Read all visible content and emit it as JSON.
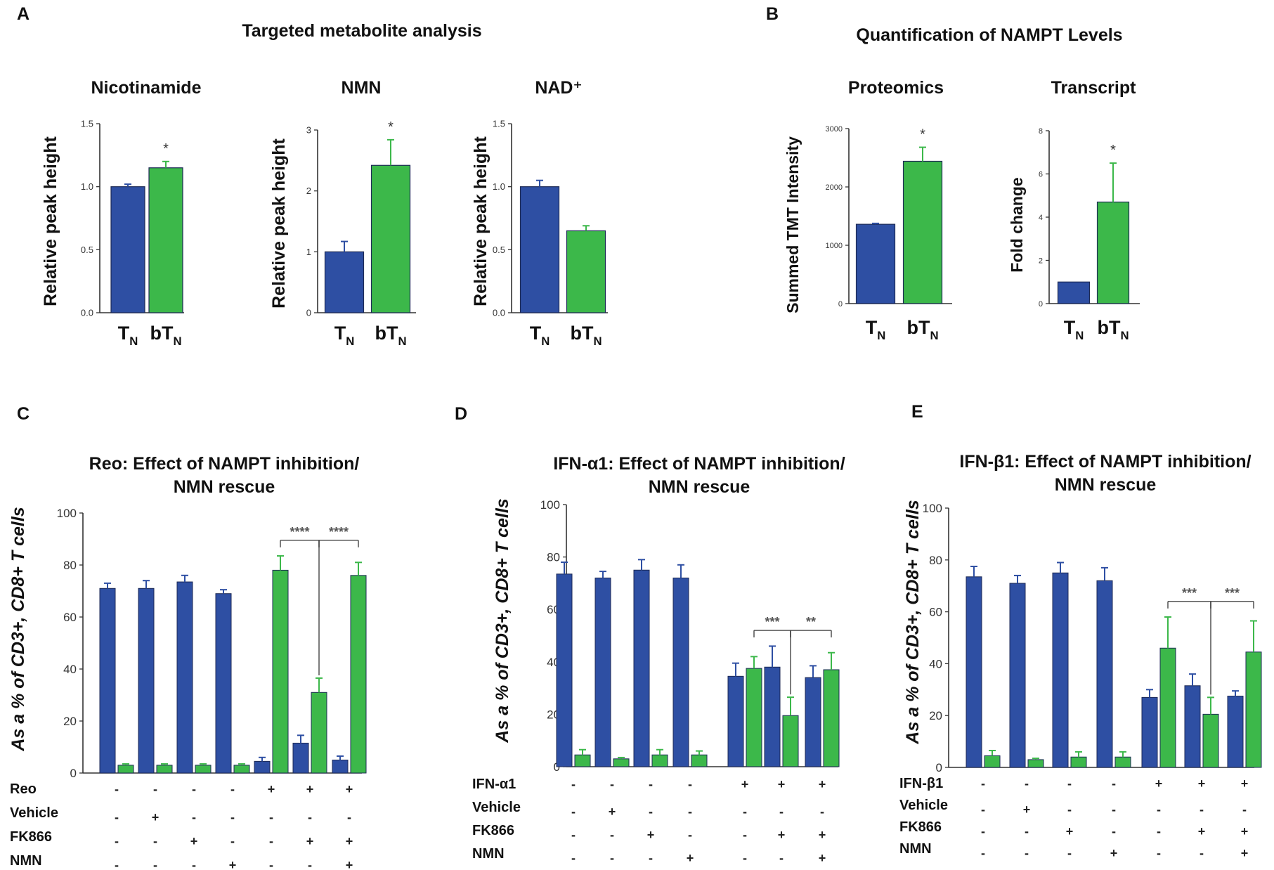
{
  "figure": {
    "panel_A_title": "Targeted metabolite analysis",
    "panel_B_title": "Quantification of NAMPT Levels"
  },
  "colors": {
    "blue": "#2E4FA3",
    "green": "#3CB84A",
    "axis": "#333333",
    "bracket": "#444444"
  },
  "chart_data": [
    {
      "id": "nic",
      "panel": "A",
      "type": "bar",
      "title": "Nicotinamide",
      "ylabel": "Relative peak height",
      "ylim": [
        0,
        1.5
      ],
      "ticks": [
        0.0,
        0.5,
        1.0,
        1.5
      ],
      "tick_labels": [
        "0.0",
        "0.5",
        "1.0",
        "1.5"
      ],
      "categories": [
        {
          "main": "T",
          "sub": "N"
        },
        {
          "main": "bT",
          "sub": "N"
        }
      ],
      "values": [
        1.0,
        1.15
      ],
      "errors": [
        0.02,
        0.05
      ],
      "colors": [
        "blue",
        "green"
      ],
      "sig": [
        "",
        "*"
      ]
    },
    {
      "id": "nmn",
      "panel": "",
      "type": "bar",
      "title": "NMN",
      "ylabel": "Relative peak height",
      "ylim": [
        0,
        3
      ],
      "ticks": [
        0,
        1,
        2,
        3
      ],
      "tick_labels": [
        "0",
        "1",
        "2",
        "3"
      ],
      "categories": [
        {
          "main": "T",
          "sub": "N"
        },
        {
          "main": "bT",
          "sub": "N"
        }
      ],
      "values": [
        1.0,
        2.42
      ],
      "errors": [
        0.17,
        0.42
      ],
      "colors": [
        "blue",
        "green"
      ],
      "sig": [
        "",
        "*"
      ]
    },
    {
      "id": "nad",
      "panel": "",
      "type": "bar",
      "title": "NAD⁺",
      "ylabel": "Relative peak height",
      "ylim": [
        0,
        1.5
      ],
      "ticks": [
        0.0,
        0.5,
        1.0,
        1.5
      ],
      "tick_labels": [
        "0.0",
        "0.5",
        "1.0",
        "1.5"
      ],
      "categories": [
        {
          "main": "T",
          "sub": "N"
        },
        {
          "main": "bT",
          "sub": "N"
        }
      ],
      "values": [
        1.0,
        0.65
      ],
      "errors": [
        0.05,
        0.04
      ],
      "colors": [
        "blue",
        "green"
      ],
      "sig": [
        "",
        ""
      ]
    },
    {
      "id": "prot",
      "panel": "B",
      "type": "bar",
      "title": "Proteomics",
      "ylabel": "Summed TMT Intensity",
      "ylim": [
        0,
        3000
      ],
      "ticks": [
        0,
        1000,
        2000,
        3000
      ],
      "tick_labels": [
        "0",
        "1000",
        "2000",
        "3000"
      ],
      "categories": [
        {
          "main": "T",
          "sub": "N"
        },
        {
          "main": "bT",
          "sub": "N"
        }
      ],
      "values": [
        1360,
        2440
      ],
      "errors": [
        15,
        240
      ],
      "colors": [
        "blue",
        "green"
      ],
      "sig": [
        "",
        "*"
      ]
    },
    {
      "id": "tran",
      "panel": "",
      "type": "bar",
      "title": "Transcript",
      "ylabel": "Fold change",
      "ylim": [
        0,
        8
      ],
      "ticks": [
        0,
        2,
        4,
        6,
        8
      ],
      "tick_labels": [
        "0",
        "2",
        "4",
        "6",
        "8"
      ],
      "categories": [
        {
          "main": "T",
          "sub": "N"
        },
        {
          "main": "bT",
          "sub": "N"
        }
      ],
      "values": [
        1.0,
        4.7
      ],
      "errors": [
        0.0,
        1.8
      ],
      "colors": [
        "blue",
        "green"
      ],
      "sig": [
        "",
        "*"
      ]
    },
    {
      "id": "reo",
      "panel": "C",
      "type": "bar",
      "title_lines": [
        "Reo: Effect of NAMPT inhibition/",
        "NMN rescue"
      ],
      "ylabel": "As a % of CD3+, CD8+ T cells",
      "ylim": [
        0,
        100
      ],
      "ticks": [
        0,
        20,
        40,
        60,
        80,
        100
      ],
      "tick_labels": [
        "0",
        "20",
        "40",
        "60",
        "80",
        "100"
      ],
      "series": [
        {
          "name": "blue",
          "color": "blue",
          "values": [
            71,
            71,
            73.5,
            69,
            4.5,
            11.5,
            5
          ],
          "errors": [
            2,
            3,
            2.5,
            1.5,
            1.5,
            3,
            1.5
          ]
        },
        {
          "name": "green",
          "color": "green",
          "values": [
            3,
            3,
            3,
            3,
            78,
            31,
            76
          ],
          "errors": [
            0.5,
            0.5,
            0.5,
            0.5,
            5.5,
            5.5,
            5
          ]
        }
      ],
      "treatment_rows": [
        {
          "label": "Reo",
          "signs": [
            "-",
            "-",
            "-",
            "-",
            "+",
            "+",
            "+"
          ]
        },
        {
          "label": "Vehicle",
          "signs": [
            "-",
            "+",
            "-",
            "-",
            "-",
            "-",
            "-"
          ]
        },
        {
          "label": "FK866",
          "signs": [
            "-",
            "-",
            "+",
            "-",
            "-",
            "+",
            "+"
          ]
        },
        {
          "label": "NMN",
          "signs": [
            "-",
            "-",
            "-",
            "+",
            "-",
            "-",
            "+"
          ]
        }
      ],
      "brackets": [
        {
          "from_group": 4,
          "to_group": 5,
          "label": "****"
        },
        {
          "from_group": 5,
          "to_group": 6,
          "label": "****"
        }
      ]
    },
    {
      "id": "ifna",
      "panel": "D",
      "type": "bar",
      "title_lines": [
        "IFN-α1: Effect of NAMPT inhibition/",
        "NMN rescue"
      ],
      "ylabel": "As a % of CD3+, CD8+ T cells",
      "ylim": [
        0,
        100
      ],
      "ticks": [
        0,
        20,
        40,
        60,
        80,
        100
      ],
      "tick_labels": [
        "0",
        "20",
        "40",
        "60",
        "80",
        "100"
      ],
      "series": [
        {
          "name": "blue",
          "color": "blue",
          "values": [
            73.5,
            72,
            75,
            72,
            34.5,
            38,
            34
          ],
          "errors": [
            4.5,
            2.5,
            4,
            5,
            5,
            8,
            4.5
          ]
        },
        {
          "name": "green",
          "color": "green",
          "values": [
            4.5,
            3,
            4.5,
            4.5,
            37.5,
            19.5,
            37
          ],
          "errors": [
            2,
            0.5,
            2,
            1.5,
            4.5,
            7,
            6.5
          ]
        }
      ],
      "treatment_rows": [
        {
          "label": "IFN-α1",
          "signs": [
            "-",
            "-",
            "-",
            "-",
            "+",
            "+",
            "+"
          ]
        },
        {
          "label": "Vehicle",
          "signs": [
            "-",
            "+",
            "-",
            "-",
            "-",
            "-",
            "-"
          ]
        },
        {
          "label": "FK866",
          "signs": [
            "-",
            "-",
            "+",
            "-",
            "-",
            "+",
            "+"
          ]
        },
        {
          "label": "NMN",
          "signs": [
            "-",
            "-",
            "-",
            "+",
            "-",
            "-",
            "+"
          ]
        }
      ],
      "brackets": [
        {
          "from_group": 4,
          "to_group": 5,
          "label": "***"
        },
        {
          "from_group": 5,
          "to_group": 6,
          "label": "**"
        }
      ]
    },
    {
      "id": "ifnb",
      "panel": "E",
      "type": "bar",
      "title_lines": [
        "IFN-β1: Effect of NAMPT inhibition/",
        "NMN rescue"
      ],
      "ylabel": "As a % of CD3+, CD8+ T cells",
      "ylim": [
        0,
        100
      ],
      "ticks": [
        0,
        20,
        40,
        60,
        80,
        100
      ],
      "tick_labels": [
        "0",
        "20",
        "40",
        "60",
        "80",
        "100"
      ],
      "series": [
        {
          "name": "blue",
          "color": "blue",
          "values": [
            73.5,
            71,
            75,
            72,
            27,
            31.5,
            27.5
          ],
          "errors": [
            4,
            3,
            4,
            5,
            3,
            4.5,
            2
          ]
        },
        {
          "name": "green",
          "color": "green",
          "values": [
            4.5,
            3,
            4,
            4,
            46,
            20.5,
            44.5
          ],
          "errors": [
            2,
            0.5,
            2,
            2,
            12,
            6.5,
            12
          ]
        }
      ],
      "treatment_rows": [
        {
          "label": "IFN-β1",
          "signs": [
            "-",
            "-",
            "-",
            "-",
            "+",
            "+",
            "+"
          ]
        },
        {
          "label": "Vehicle",
          "signs": [
            "-",
            "+",
            "-",
            "-",
            "-",
            "-",
            "-"
          ]
        },
        {
          "label": "FK866",
          "signs": [
            "-",
            "-",
            "+",
            "-",
            "-",
            "+",
            "+"
          ]
        },
        {
          "label": "NMN",
          "signs": [
            "-",
            "-",
            "-",
            "+",
            "-",
            "-",
            "+"
          ]
        }
      ],
      "brackets": [
        {
          "from_group": 4,
          "to_group": 5,
          "label": "***"
        },
        {
          "from_group": 5,
          "to_group": 6,
          "label": "***"
        }
      ]
    }
  ]
}
